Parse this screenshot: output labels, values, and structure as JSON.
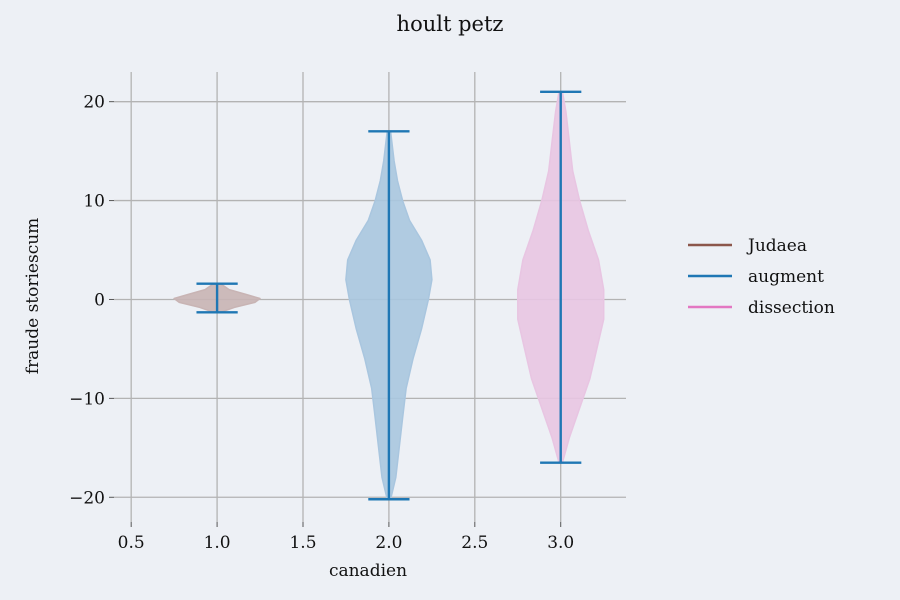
{
  "chart_data": {
    "type": "violin",
    "title": "hoult petz",
    "xlabel": "canadien",
    "ylabel": "fraude storiescum",
    "xlim": [
      0.4,
      3.38
    ],
    "ylim": [
      -22.5,
      23
    ],
    "xticks": [
      0.5,
      1.0,
      1.5,
      2.0,
      2.5,
      3.0
    ],
    "xtick_labels": [
      "0.5",
      "1.0",
      "1.5",
      "2.0",
      "2.5",
      "3.0"
    ],
    "yticks": [
      -20,
      -10,
      0,
      10,
      20
    ],
    "ytick_labels": [
      "−20",
      "−10",
      "0",
      "10",
      "20"
    ],
    "grid": true,
    "legend_position": "right",
    "series": [
      {
        "name": "Judaea",
        "color": "#8c564b",
        "fill": "#c8b4b4",
        "position": 1.0,
        "min": -1.3,
        "max": 1.6,
        "profile": [
          [
            -1.3,
            0.02
          ],
          [
            -0.8,
            0.1
          ],
          [
            -0.3,
            0.22
          ],
          [
            0.1,
            0.25
          ],
          [
            0.5,
            0.17
          ],
          [
            1.0,
            0.07
          ],
          [
            1.6,
            0.02
          ]
        ]
      },
      {
        "name": "augment",
        "color": "#1f77b4",
        "fill": "#a9c6df",
        "position": 2.0,
        "min": -20.2,
        "max": 17.0,
        "profile": [
          [
            -20.2,
            0.01
          ],
          [
            -18,
            0.04
          ],
          [
            -15,
            0.06
          ],
          [
            -12,
            0.08
          ],
          [
            -9,
            0.1
          ],
          [
            -6,
            0.14
          ],
          [
            -3,
            0.19
          ],
          [
            0,
            0.23
          ],
          [
            2,
            0.25
          ],
          [
            4,
            0.24
          ],
          [
            6,
            0.19
          ],
          [
            8,
            0.12
          ],
          [
            10,
            0.08
          ],
          [
            12,
            0.05
          ],
          [
            14,
            0.03
          ],
          [
            17,
            0.01
          ]
        ]
      },
      {
        "name": "dissection",
        "color": "#e377c2",
        "fill": "#e8c5e2",
        "position": 3.0,
        "min": -16.5,
        "max": 21.0,
        "profile": [
          [
            -16.5,
            0.01
          ],
          [
            -14,
            0.05
          ],
          [
            -11,
            0.11
          ],
          [
            -8,
            0.17
          ],
          [
            -5,
            0.21
          ],
          [
            -2,
            0.25
          ],
          [
            1,
            0.25
          ],
          [
            4,
            0.22
          ],
          [
            7,
            0.16
          ],
          [
            10,
            0.11
          ],
          [
            13,
            0.07
          ],
          [
            16,
            0.05
          ],
          [
            19,
            0.03
          ],
          [
            21,
            0.01
          ]
        ]
      }
    ]
  }
}
